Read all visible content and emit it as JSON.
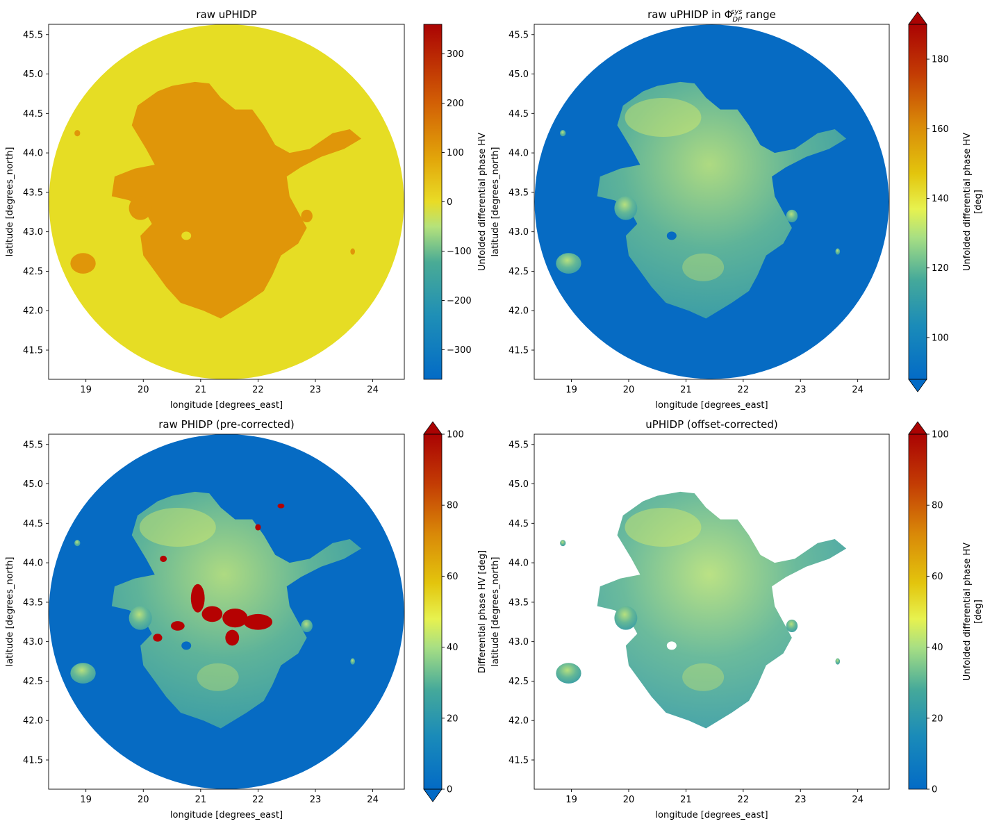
{
  "chart_data": [
    {
      "type": "heatmap",
      "title": "raw uPHIDP",
      "xlabel": "longitude [degrees_east]",
      "ylabel": "latitude [degrees_north]",
      "xlim": [
        18.35,
        24.55
      ],
      "ylim": [
        41.13,
        45.63
      ],
      "xticks": [
        "19",
        "20",
        "21",
        "22",
        "23",
        "24"
      ],
      "yticks": [
        "41.5",
        "42.0",
        "42.5",
        "43.0",
        "43.5",
        "44.0",
        "44.5",
        "45.0",
        "45.5"
      ],
      "radar_center": [
        21.45,
        43.38
      ],
      "background_color": "#e6dd24",
      "echo_color": "#e09609",
      "colorbar": {
        "label": "Unfolded differential phase HV",
        "range": [
          -360,
          360
        ],
        "ticks": [
          "300",
          "200",
          "100",
          "0",
          "−100",
          "−200",
          "−300"
        ],
        "extend": "neither"
      },
      "grid": false
    },
    {
      "type": "heatmap",
      "title": "raw uPHIDP in ",
      "title_symbol": "Φ",
      "title_sub": "DP",
      "title_sup": "sys",
      "title_suffix": " range",
      "xlabel": "longitude [degrees_east]",
      "ylabel": "latitude [degrees_north]",
      "xlim": [
        18.35,
        24.55
      ],
      "ylim": [
        41.13,
        45.63
      ],
      "xticks": [
        "19",
        "20",
        "21",
        "22",
        "23",
        "24"
      ],
      "yticks": [
        "41.5",
        "42.0",
        "42.5",
        "43.0",
        "43.5",
        "44.0",
        "44.5",
        "45.0",
        "45.5"
      ],
      "radar_center": [
        21.45,
        43.38
      ],
      "background_color": "#066bc3",
      "echo_color": "#45a89c",
      "colorbar": {
        "label": "Unfolded differential phase HV",
        "unit": "[deg]",
        "range": [
          88,
          190
        ],
        "ticks": [
          "180",
          "160",
          "140",
          "120",
          "100"
        ],
        "extend": "both"
      },
      "grid": false
    },
    {
      "type": "heatmap",
      "title": "raw PHIDP (pre-corrected)",
      "xlabel": "longitude [degrees_east]",
      "ylabel": "latitude [degrees_north]",
      "xlim": [
        18.35,
        24.55
      ],
      "ylim": [
        41.13,
        45.63
      ],
      "xticks": [
        "19",
        "20",
        "21",
        "22",
        "23",
        "24"
      ],
      "yticks": [
        "41.5",
        "42.0",
        "42.5",
        "43.0",
        "43.5",
        "44.0",
        "44.5",
        "45.0",
        "45.5"
      ],
      "radar_center": [
        21.45,
        43.38
      ],
      "background_color": "#066bc3",
      "echo_color": "#5ab69a",
      "colorbar": {
        "label": "Differential phase HV [deg]",
        "range": [
          0,
          100
        ],
        "ticks": [
          "100",
          "80",
          "60",
          "40",
          "20",
          "0"
        ],
        "extend": "both"
      },
      "grid": false
    },
    {
      "type": "heatmap",
      "title": "uPHIDP (offset-corrected)",
      "xlabel": "longitude [degrees_east]",
      "ylabel": "latitude [degrees_north]",
      "xlim": [
        18.35,
        24.55
      ],
      "ylim": [
        41.13,
        45.63
      ],
      "xticks": [
        "19",
        "20",
        "21",
        "22",
        "23",
        "24"
      ],
      "yticks": [
        "41.5",
        "42.0",
        "42.5",
        "43.0",
        "43.5",
        "44.0",
        "44.5",
        "45.0",
        "45.5"
      ],
      "radar_center": [
        21.45,
        43.38
      ],
      "background_color": "#ffffff",
      "echo_color": "#3a9ea4",
      "colorbar": {
        "label": "Unfolded differential phase HV",
        "unit": "[deg]",
        "range": [
          0,
          100
        ],
        "ticks": [
          "100",
          "80",
          "60",
          "40",
          "20",
          "0"
        ],
        "extend": "max"
      },
      "grid": false
    }
  ]
}
